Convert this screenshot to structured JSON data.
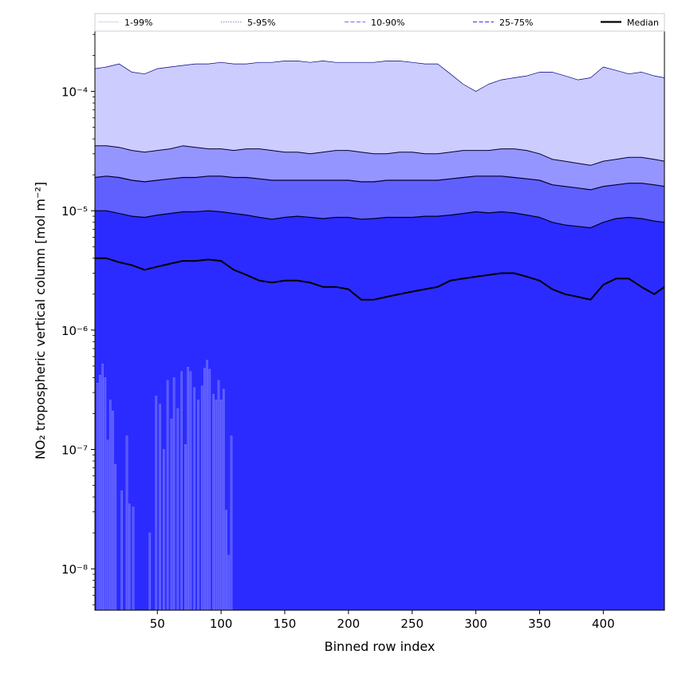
{
  "chart_data": {
    "type": "area",
    "xlabel": "Binned row index",
    "ylabel": "NO₂ tropospheric vertical column [mol m⁻²]",
    "xlim": [
      1,
      448
    ],
    "ylim": [
      4.5e-09,
      0.00032
    ],
    "yscale": "log",
    "x_ticks": [
      50,
      100,
      150,
      200,
      250,
      300,
      350,
      400
    ],
    "y_ticks": [
      {
        "value": 1e-08,
        "label": "10⁻⁸"
      },
      {
        "value": 1e-07,
        "label": "10⁻⁷"
      },
      {
        "value": 1e-06,
        "label": "10⁻⁶"
      },
      {
        "value": 1e-05,
        "label": "10⁻⁵"
      },
      {
        "value": 0.0001,
        "label": "10⁻⁴"
      }
    ],
    "grid": false,
    "legend_position": "top, above plot",
    "legend": [
      {
        "label": "1-99%",
        "color": "#dcdcf0",
        "style": "solid"
      },
      {
        "label": "5-95%",
        "color": "#9a9ac8",
        "style": "dotted"
      },
      {
        "label": "10-90%",
        "color": "#8080ff",
        "style": "dashed"
      },
      {
        "label": "25-75%",
        "color": "#5050e8",
        "style": "dashed"
      },
      {
        "label": "Median",
        "color": "#000000",
        "style": "solid"
      }
    ],
    "fill_colors": {
      "band_5_95": "#ccccff",
      "band_10_90": "#9595ff",
      "band_25_75": "#6060ff",
      "below_25": "#2b2bff",
      "spikes": "#5555ff"
    },
    "x": [
      1,
      10,
      20,
      30,
      40,
      50,
      60,
      70,
      80,
      90,
      100,
      110,
      120,
      130,
      140,
      150,
      160,
      170,
      180,
      190,
      200,
      210,
      220,
      230,
      240,
      250,
      260,
      270,
      280,
      290,
      300,
      310,
      320,
      330,
      340,
      350,
      360,
      370,
      380,
      390,
      400,
      410,
      420,
      430,
      440,
      448
    ],
    "series": [
      {
        "name": "95%",
        "values": [
          0.000155,
          0.00016,
          0.00017,
          0.000145,
          0.00014,
          0.000155,
          0.00016,
          0.000165,
          0.00017,
          0.00017,
          0.000175,
          0.00017,
          0.00017,
          0.000175,
          0.000175,
          0.00018,
          0.00018,
          0.000175,
          0.00018,
          0.000175,
          0.000175,
          0.000175,
          0.000175,
          0.00018,
          0.00018,
          0.000175,
          0.00017,
          0.00017,
          0.00014,
          0.000115,
          0.0001,
          0.000115,
          0.000125,
          0.00013,
          0.000135,
          0.000145,
          0.000145,
          0.000135,
          0.000125,
          0.00013,
          0.00016,
          0.00015,
          0.00014,
          0.000145,
          0.000135,
          0.00013
        ]
      },
      {
        "name": "90%",
        "values": [
          3.5e-05,
          3.5e-05,
          3.4e-05,
          3.2e-05,
          3.1e-05,
          3.2e-05,
          3.3e-05,
          3.5e-05,
          3.4e-05,
          3.3e-05,
          3.3e-05,
          3.2e-05,
          3.3e-05,
          3.3e-05,
          3.2e-05,
          3.1e-05,
          3.1e-05,
          3e-05,
          3.1e-05,
          3.2e-05,
          3.2e-05,
          3.1e-05,
          3e-05,
          3e-05,
          3.1e-05,
          3.1e-05,
          3e-05,
          3e-05,
          3.1e-05,
          3.2e-05,
          3.2e-05,
          3.2e-05,
          3.3e-05,
          3.3e-05,
          3.2e-05,
          3e-05,
          2.7e-05,
          2.6e-05,
          2.5e-05,
          2.4e-05,
          2.6e-05,
          2.7e-05,
          2.8e-05,
          2.8e-05,
          2.7e-05,
          2.6e-05
        ]
      },
      {
        "name": "75%",
        "values": [
          1.9e-05,
          1.95e-05,
          1.9e-05,
          1.8e-05,
          1.75e-05,
          1.8e-05,
          1.85e-05,
          1.9e-05,
          1.9e-05,
          1.95e-05,
          1.95e-05,
          1.9e-05,
          1.9e-05,
          1.85e-05,
          1.8e-05,
          1.8e-05,
          1.8e-05,
          1.8e-05,
          1.8e-05,
          1.8e-05,
          1.8e-05,
          1.75e-05,
          1.75e-05,
          1.8e-05,
          1.8e-05,
          1.8e-05,
          1.8e-05,
          1.8e-05,
          1.85e-05,
          1.9e-05,
          1.95e-05,
          1.95e-05,
          1.95e-05,
          1.9e-05,
          1.85e-05,
          1.8e-05,
          1.65e-05,
          1.6e-05,
          1.55e-05,
          1.5e-05,
          1.6e-05,
          1.65e-05,
          1.7e-05,
          1.7e-05,
          1.65e-05,
          1.6e-05
        ]
      },
      {
        "name": "25%",
        "values": [
          1e-05,
          1e-05,
          9.5e-06,
          9e-06,
          8.8e-06,
          9.2e-06,
          9.5e-06,
          9.8e-06,
          9.8e-06,
          1e-05,
          9.8e-06,
          9.5e-06,
          9.2e-06,
          8.8e-06,
          8.5e-06,
          8.8e-06,
          9e-06,
          8.8e-06,
          8.6e-06,
          8.8e-06,
          8.8e-06,
          8.5e-06,
          8.6e-06,
          8.8e-06,
          8.8e-06,
          8.8e-06,
          9e-06,
          9e-06,
          9.2e-06,
          9.5e-06,
          9.8e-06,
          9.6e-06,
          9.8e-06,
          9.6e-06,
          9.2e-06,
          8.8e-06,
          8e-06,
          7.6e-06,
          7.4e-06,
          7.2e-06,
          8e-06,
          8.6e-06,
          8.8e-06,
          8.6e-06,
          8.2e-06,
          8e-06
        ]
      },
      {
        "name": "Median",
        "values": [
          4e-06,
          4e-06,
          3.7e-06,
          3.5e-06,
          3.2e-06,
          3.4e-06,
          3.6e-06,
          3.8e-06,
          3.8e-06,
          3.9e-06,
          3.8e-06,
          3.2e-06,
          2.9e-06,
          2.6e-06,
          2.5e-06,
          2.6e-06,
          2.6e-06,
          2.5e-06,
          2.3e-06,
          2.3e-06,
          2.2e-06,
          1.8e-06,
          1.8e-06,
          1.9e-06,
          2e-06,
          2.1e-06,
          2.2e-06,
          2.3e-06,
          2.6e-06,
          2.7e-06,
          2.8e-06,
          2.9e-06,
          3e-06,
          3e-06,
          2.8e-06,
          2.6e-06,
          2.2e-06,
          2e-06,
          1.9e-06,
          1.8e-06,
          2.4e-06,
          2.7e-06,
          2.7e-06,
          2.3e-06,
          2e-06,
          2.3e-06
        ]
      }
    ],
    "low_spikes": [
      {
        "x": 3,
        "y": 3.6e-07
      },
      {
        "x": 5,
        "y": 4.2e-07
      },
      {
        "x": 7,
        "y": 5.2e-07
      },
      {
        "x": 9,
        "y": 4e-07
      },
      {
        "x": 11,
        "y": 1.2e-07
      },
      {
        "x": 13,
        "y": 2.6e-07
      },
      {
        "x": 15,
        "y": 2.1e-07
      },
      {
        "x": 17,
        "y": 7.5e-08
      },
      {
        "x": 22,
        "y": 4.5e-08
      },
      {
        "x": 26,
        "y": 1.3e-07
      },
      {
        "x": 28,
        "y": 3.5e-08
      },
      {
        "x": 31,
        "y": 3.3e-08
      },
      {
        "x": 44,
        "y": 2e-08
      },
      {
        "x": 49,
        "y": 2.8e-07
      },
      {
        "x": 52,
        "y": 2.4e-07
      },
      {
        "x": 55,
        "y": 1e-07
      },
      {
        "x": 58,
        "y": 3.8e-07
      },
      {
        "x": 61,
        "y": 1.8e-07
      },
      {
        "x": 63,
        "y": 4e-07
      },
      {
        "x": 66,
        "y": 2.2e-07
      },
      {
        "x": 69,
        "y": 4.5e-07
      },
      {
        "x": 72,
        "y": 1.1e-07
      },
      {
        "x": 74,
        "y": 4.9e-07
      },
      {
        "x": 76,
        "y": 4.5e-07
      },
      {
        "x": 79,
        "y": 3.3e-07
      },
      {
        "x": 82,
        "y": 2.6e-07
      },
      {
        "x": 85,
        "y": 3.4e-07
      },
      {
        "x": 87,
        "y": 4.8e-07
      },
      {
        "x": 89,
        "y": 5.6e-07
      },
      {
        "x": 91,
        "y": 4.7e-07
      },
      {
        "x": 94,
        "y": 2.9e-07
      },
      {
        "x": 96,
        "y": 2.6e-07
      },
      {
        "x": 98,
        "y": 3.8e-07
      },
      {
        "x": 100,
        "y": 2.6e-07
      },
      {
        "x": 102,
        "y": 3.2e-07
      },
      {
        "x": 104,
        "y": 3.1e-08
      },
      {
        "x": 106,
        "y": 1.3e-08
      },
      {
        "x": 108,
        "y": 1.3e-07
      }
    ]
  }
}
